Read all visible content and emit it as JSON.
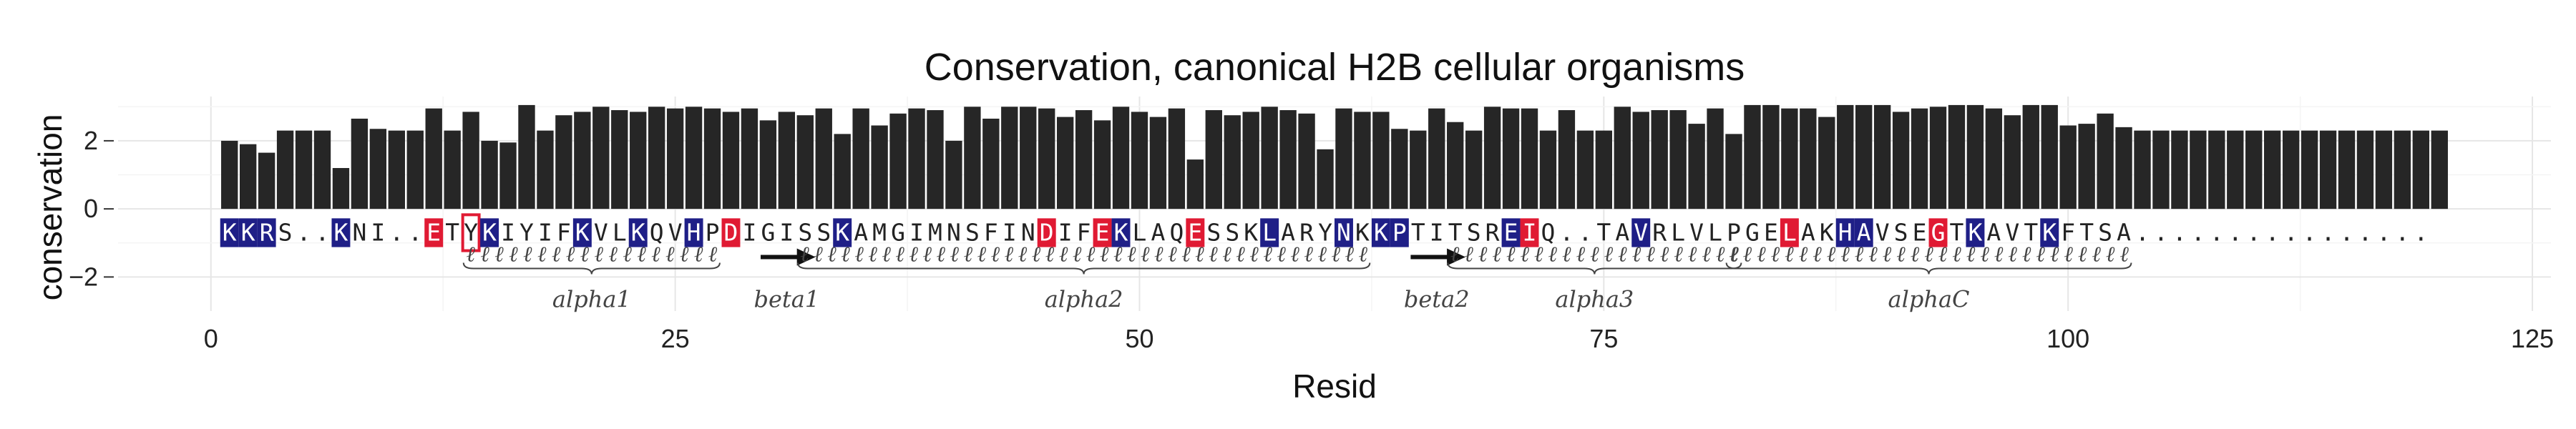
{
  "chart_data": {
    "type": "bar",
    "title": "Conservation, canonical H2B cellular organisms",
    "xlabel": "Resid",
    "ylabel": "conservation",
    "xlim": [
      -5,
      126
    ],
    "ylim": [
      -3,
      3.3
    ],
    "xticks": [
      0,
      25,
      50,
      75,
      100,
      125
    ],
    "yticks": [
      -2,
      0,
      2
    ],
    "x": [
      1,
      2,
      3,
      4,
      5,
      6,
      7,
      8,
      9,
      10,
      11,
      12,
      13,
      14,
      15,
      16,
      17,
      18,
      19,
      20,
      21,
      22,
      23,
      24,
      25,
      26,
      27,
      28,
      29,
      30,
      31,
      32,
      33,
      34,
      35,
      36,
      37,
      38,
      39,
      40,
      41,
      42,
      43,
      44,
      45,
      46,
      47,
      48,
      49,
      50,
      51,
      52,
      53,
      54,
      55,
      56,
      57,
      58,
      59,
      60,
      61,
      62,
      63,
      64,
      65,
      66,
      67,
      68,
      69,
      70,
      71,
      72,
      73,
      74,
      75,
      76,
      77,
      78,
      79,
      80,
      81,
      82,
      83,
      84,
      85,
      86,
      87,
      88,
      89,
      90,
      91,
      92,
      93,
      94,
      95,
      96,
      97,
      98,
      99,
      100,
      101,
      102,
      103,
      104,
      105,
      106,
      107,
      108,
      109,
      110,
      111,
      112,
      113,
      114,
      115,
      116,
      117,
      118,
      119,
      120
    ],
    "values": [
      2.0,
      1.9,
      1.65,
      2.3,
      2.3,
      2.3,
      1.2,
      2.65,
      2.35,
      2.3,
      2.3,
      2.95,
      2.3,
      2.85,
      2.0,
      1.95,
      3.05,
      2.3,
      2.75,
      2.85,
      3.0,
      2.9,
      2.85,
      3.0,
      2.95,
      3.0,
      2.95,
      2.85,
      2.95,
      2.6,
      2.85,
      2.75,
      2.95,
      2.2,
      2.95,
      2.45,
      2.8,
      2.95,
      2.9,
      2.0,
      3.0,
      2.65,
      3.0,
      3.0,
      2.95,
      2.7,
      2.9,
      2.6,
      3.0,
      2.85,
      2.7,
      2.95,
      1.45,
      2.9,
      2.75,
      2.85,
      3.0,
      2.9,
      2.8,
      1.75,
      2.95,
      2.85,
      2.85,
      2.35,
      2.3,
      2.95,
      2.55,
      2.3,
      3.0,
      2.95,
      2.95,
      2.3,
      2.9,
      2.3,
      2.3,
      3.0,
      2.85,
      2.9,
      2.9,
      2.5,
      2.95,
      2.2,
      3.05,
      3.05,
      2.95,
      2.95,
      2.7,
      3.05,
      3.05,
      3.05,
      2.85,
      2.95,
      3.0,
      3.05,
      3.05,
      2.95,
      2.75,
      3.05,
      3.05,
      2.45,
      2.5,
      2.8,
      2.4,
      2.3,
      2.3,
      2.3,
      2.3,
      2.3,
      2.3,
      2.3,
      2.3,
      2.3,
      2.3,
      2.3,
      2.3,
      2.3,
      2.3,
      2.3,
      2.3,
      2.3
    ],
    "bar_color": "#262626",
    "grid": true,
    "sequence": {
      "row_y": -0.7,
      "chars": [
        "K",
        "K",
        "R",
        "S",
        ".",
        ".",
        "K",
        "N",
        "I",
        ".",
        ".",
        "E",
        "T",
        "Y",
        "K",
        "I",
        "Y",
        "I",
        "F",
        "K",
        "V",
        "L",
        "K",
        "Q",
        "V",
        "H",
        "P",
        "D",
        "I",
        "G",
        "I",
        "S",
        "S",
        "K",
        "A",
        "M",
        "G",
        "I",
        "M",
        "N",
        "S",
        "F",
        "I",
        "N",
        "D",
        "I",
        "F",
        "E",
        "K",
        "L",
        "A",
        "Q",
        "E",
        "S",
        "S",
        "K",
        "L",
        "A",
        "R",
        "Y",
        "N",
        "K",
        "K",
        "P",
        "T",
        "I",
        "T",
        "S",
        "R",
        "E",
        "I",
        "Q",
        ".",
        ".",
        "T",
        "A",
        "V",
        "R",
        "L",
        "V",
        "L",
        "P",
        "G",
        "E",
        "L",
        "A",
        "K",
        "H",
        "A",
        "V",
        "S",
        "E",
        "G",
        "T",
        "K",
        "A",
        "V",
        "T",
        "K",
        "F",
        "T",
        "S",
        "A",
        ".",
        ".",
        ".",
        ".",
        ".",
        ".",
        ".",
        ".",
        ".",
        ".",
        ".",
        ".",
        ".",
        ".",
        ".",
        "."
      ],
      "basic_positions": [
        1,
        2,
        3,
        7,
        15,
        20,
        23,
        26,
        34,
        49,
        57,
        61,
        63,
        64,
        70,
        77,
        88,
        89,
        95,
        99
      ],
      "acidic_positions": [
        12,
        28,
        45,
        48,
        53,
        71,
        85,
        93
      ],
      "outlined_positions": [
        14
      ],
      "basic_color": "#1f1f87",
      "acidic_color": "#e01a33"
    },
    "secondary_structure": [
      {
        "type": "helix",
        "label": "alpha1",
        "start": 14,
        "end": 27
      },
      {
        "type": "strand",
        "label": "beta1",
        "start": 30,
        "end": 32
      },
      {
        "type": "helix",
        "label": "alpha2",
        "start": 32,
        "end": 62
      },
      {
        "type": "strand",
        "label": "beta2",
        "start": 65,
        "end": 67
      },
      {
        "type": "helix",
        "label": "alpha3",
        "start": 67,
        "end": 82
      },
      {
        "type": "helix",
        "label": "alphaC",
        "start": 82,
        "end": 103
      }
    ]
  }
}
